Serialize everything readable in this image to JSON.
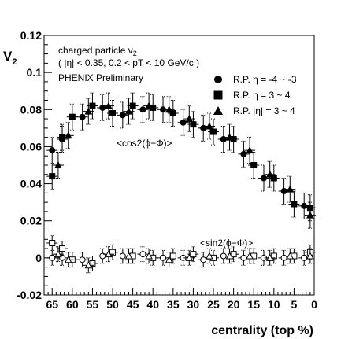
{
  "chart_data": {
    "type": "scatter",
    "ylabel": "V",
    "ylabel_sub": "2",
    "xlabel": "centrality (top %)",
    "xlim": [
      67,
      0
    ],
    "ylim": [
      -0.02,
      0.12
    ],
    "x_ticks": [
      65,
      60,
      55,
      50,
      45,
      40,
      35,
      30,
      25,
      20,
      15,
      10,
      5,
      0
    ],
    "x_tick_labels": [
      "65",
      "60",
      "55",
      "50",
      "45",
      "40",
      "35",
      "30",
      "25",
      "20",
      "15",
      "10",
      "5",
      "0"
    ],
    "y_ticks": [
      -0.02,
      0,
      0.02,
      0.04,
      0.06,
      0.08,
      0.1,
      0.12
    ],
    "y_tick_labels": [
      "-0.02",
      "0",
      "0.02",
      "0.04",
      "0.06",
      "0.08",
      "0.1",
      "0.12"
    ],
    "info_lines": [
      "charged particle v",
      "( |η| < 0.35,  0.2 < pT < 10 GeV/c )",
      "PHENIX Preliminary"
    ],
    "info_sub": "2",
    "annotations": {
      "cos": "<cos2(ϕ−Φ)>",
      "sin": "<sin2(ϕ−Φ)>"
    },
    "legend": {
      "placement": "top-right",
      "entries": [
        {
          "label": "R.P. η = -4 ~ -3",
          "marker": "circle"
        },
        {
          "label": "R.P. η = 3 ~ 4",
          "marker": "square"
        },
        {
          "label": "R.P. |η| = 3 ~ 4",
          "marker": "triangle"
        }
      ]
    },
    "series": [
      {
        "group": "cos",
        "marker": "circle",
        "fill": "solid",
        "err": 0.007,
        "x": [
          65,
          62.5,
          57.5,
          52.5,
          47.5,
          42.5,
          37.5,
          32.5,
          27.5,
          22.5,
          17.5,
          12.5,
          7.5,
          2.5
        ],
        "y": [
          0.058,
          0.064,
          0.076,
          0.081,
          0.077,
          0.08,
          0.08,
          0.073,
          0.07,
          0.064,
          0.056,
          0.043,
          0.036,
          0.028
        ]
      },
      {
        "group": "cos",
        "marker": "square",
        "fill": "solid",
        "err": 0.007,
        "x": [
          65,
          62.5,
          60,
          55,
          50,
          45,
          40,
          35,
          30,
          25,
          20,
          15,
          10,
          5,
          1
        ],
        "y": [
          0.044,
          0.065,
          0.076,
          0.082,
          0.078,
          0.082,
          0.081,
          0.078,
          0.072,
          0.068,
          0.064,
          0.05,
          0.043,
          0.029,
          0.027
        ]
      },
      {
        "group": "cos",
        "marker": "triangle",
        "fill": "solid",
        "err": 0.007,
        "x": [
          63.5,
          61,
          56,
          51,
          46,
          41,
          36,
          31,
          26,
          21,
          16,
          11,
          6,
          1
        ],
        "y": [
          0.05,
          0.066,
          0.079,
          0.082,
          0.079,
          0.082,
          0.08,
          0.075,
          0.071,
          0.065,
          0.058,
          0.045,
          0.037,
          0.023
        ]
      },
      {
        "group": "sin",
        "marker": "circle",
        "fill": "open",
        "err": 0.004,
        "x": [
          65,
          62.5,
          57.5,
          52.5,
          47.5,
          42.5,
          37.5,
          32.5,
          27.5,
          22.5,
          17.5,
          12.5,
          7.5,
          2.5
        ],
        "y": [
          0,
          0,
          -0.001,
          0.001,
          0.001,
          0.002,
          0,
          0,
          -0.001,
          0.001,
          0,
          0,
          0,
          0
        ]
      },
      {
        "group": "sin",
        "marker": "square",
        "fill": "open",
        "err": 0.004,
        "x": [
          65,
          62.5,
          60,
          55,
          50,
          45,
          40,
          35,
          30,
          25,
          20,
          15,
          10,
          5,
          1
        ],
        "y": [
          0.008,
          0.005,
          -0.001,
          -0.003,
          0.003,
          0.001,
          0,
          0.001,
          0.002,
          0,
          0.002,
          0.001,
          0.001,
          0.001,
          0.003
        ]
      },
      {
        "group": "sin",
        "marker": "triangle",
        "fill": "open",
        "err": 0.004,
        "x": [
          63.5,
          61,
          56,
          51,
          46,
          41,
          36,
          31,
          26,
          21,
          16,
          11,
          6,
          1
        ],
        "y": [
          0.002,
          -0.001,
          -0.004,
          0.002,
          0.001,
          0.001,
          -0.001,
          0,
          0.001,
          0.001,
          0.001,
          0,
          0.001,
          0.001
        ]
      }
    ]
  }
}
